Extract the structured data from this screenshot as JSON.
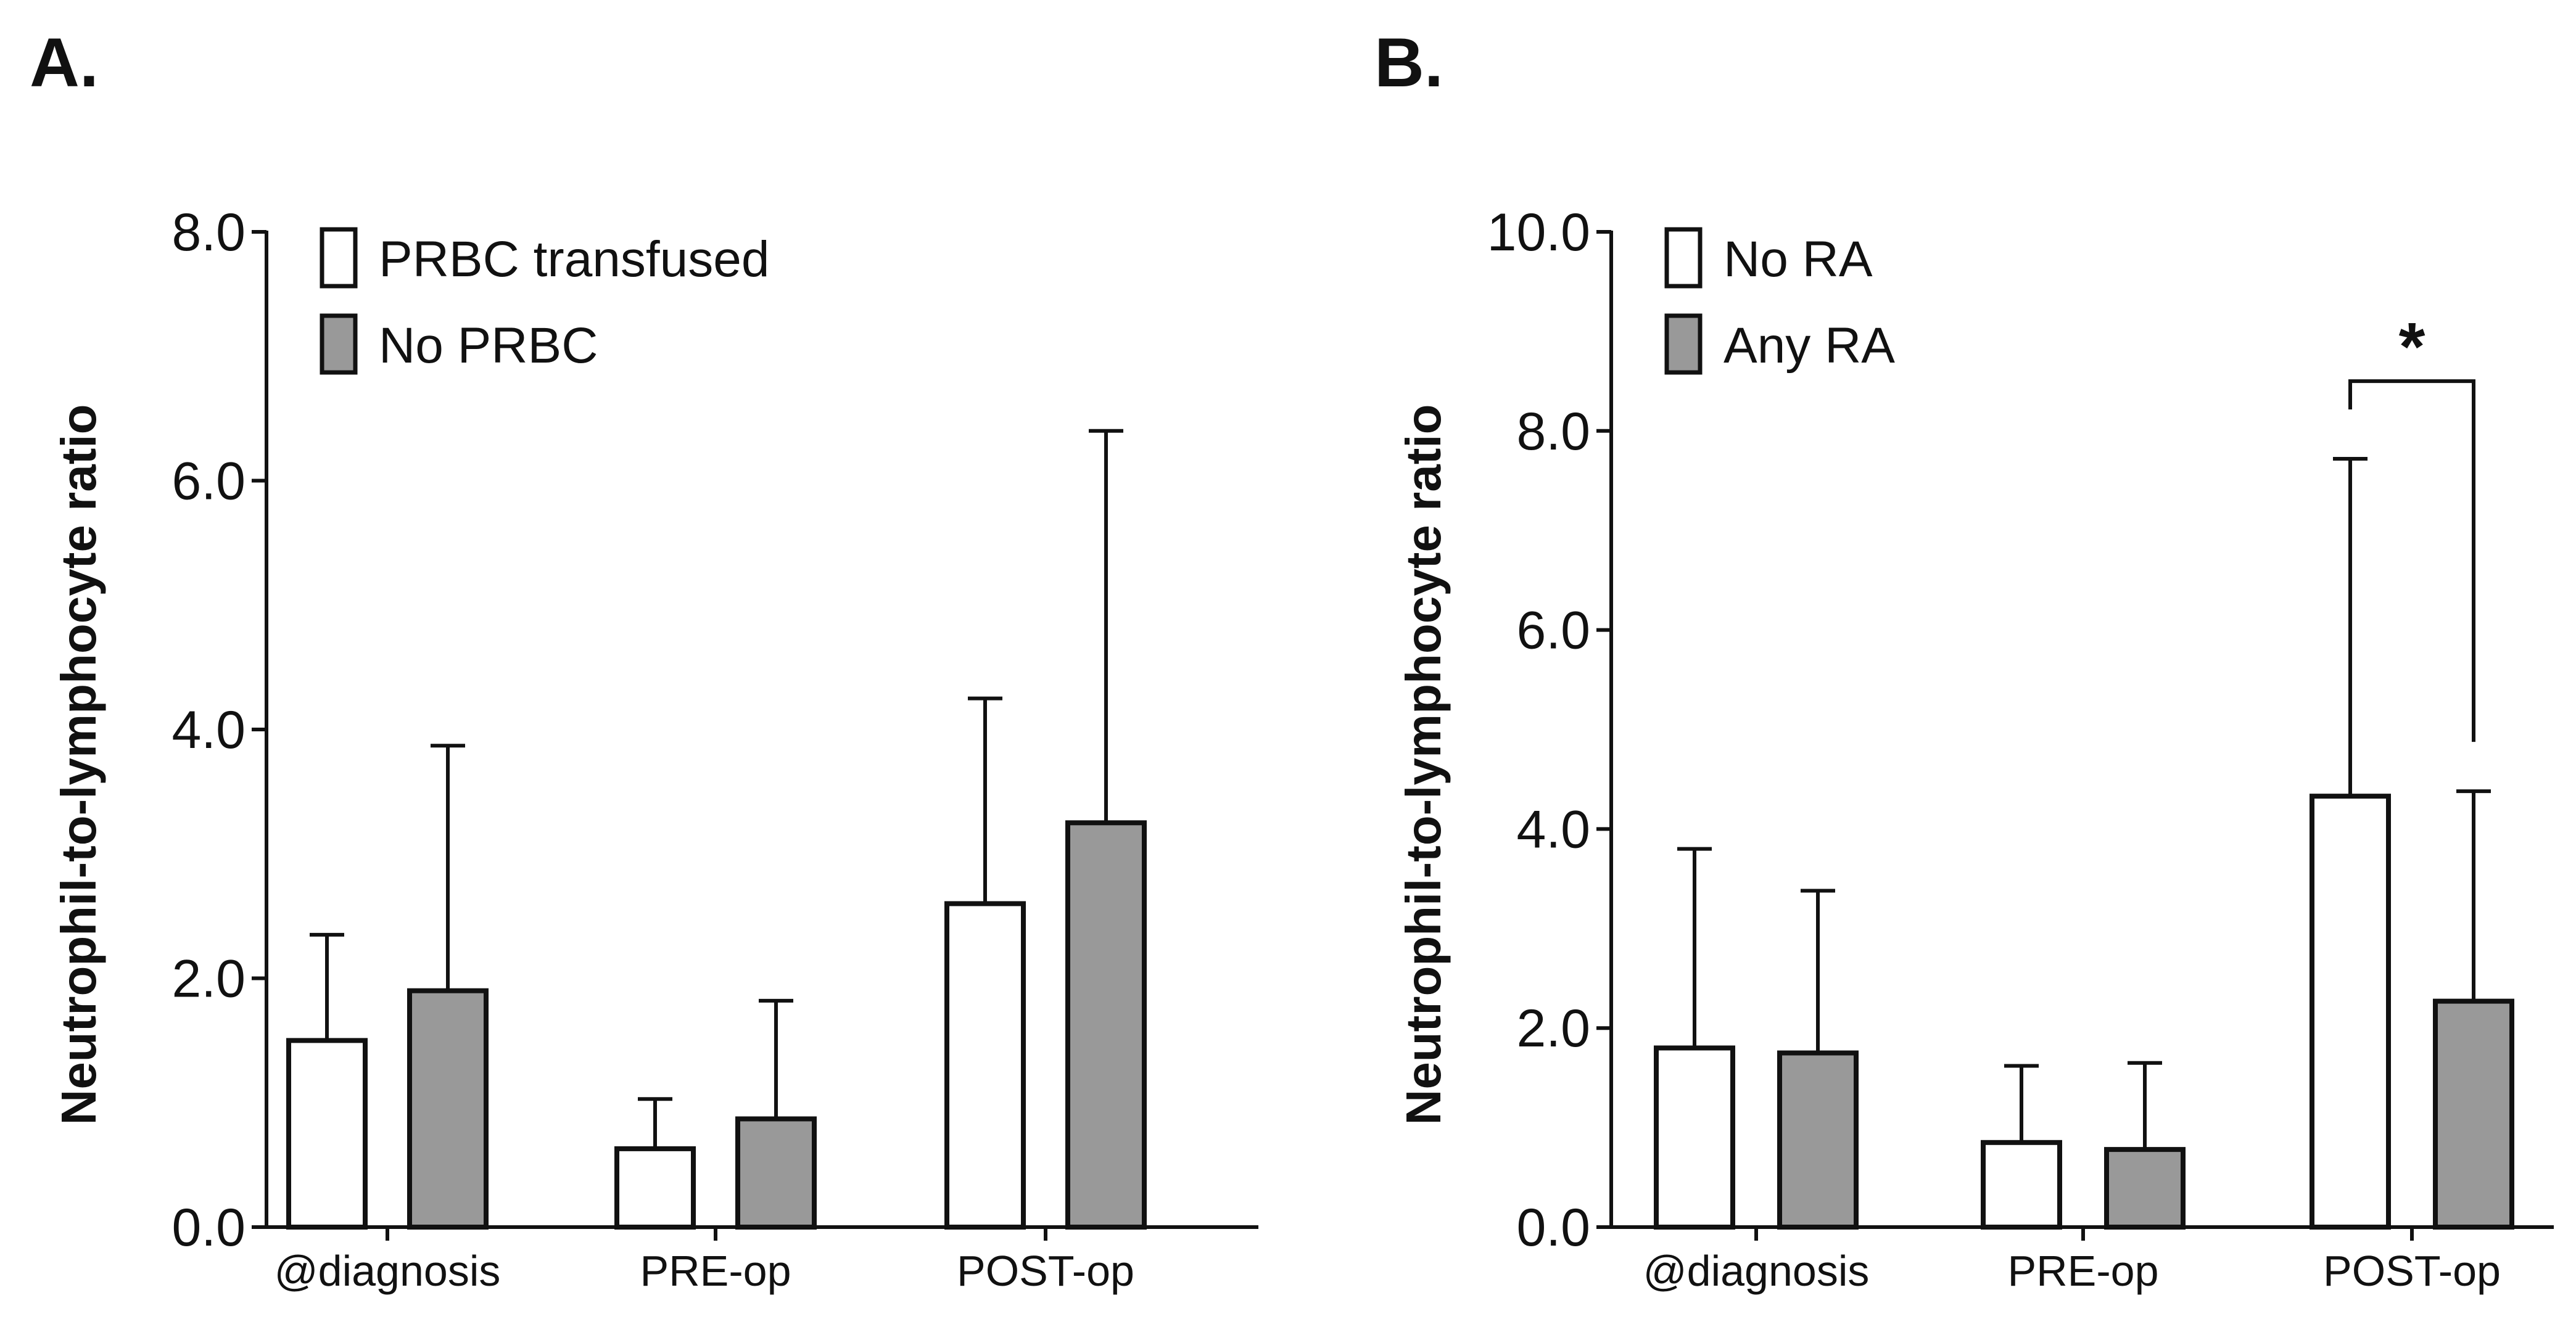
{
  "chart_data": [
    {
      "panel": "A.",
      "type": "bar",
      "categories": [
        "@diagnosis",
        "PRE-op",
        "POST-op"
      ],
      "series": [
        {
          "name": "PRBC transfused",
          "color": "#ffffff",
          "values": [
            1.5,
            0.63,
            2.6
          ],
          "error_upper": [
            2.35,
            1.03,
            4.25
          ]
        },
        {
          "name": "No PRBC",
          "color": "#999999",
          "values": [
            1.9,
            0.87,
            3.25
          ],
          "error_upper": [
            3.87,
            1.82,
            6.4
          ]
        }
      ],
      "ylabel": "Neutrophil-to-lymphocyte ratio",
      "ylim": [
        0,
        8
      ],
      "yticks": [
        "0.0",
        "2.0",
        "4.0",
        "6.0",
        "8.0"
      ],
      "legend_position": "top-left",
      "grid": false
    },
    {
      "panel": "B.",
      "type": "bar",
      "categories": [
        "@diagnosis",
        "PRE-op",
        "POST-op"
      ],
      "series": [
        {
          "name": "No RA",
          "color": "#ffffff",
          "values": [
            1.8,
            0.85,
            4.33
          ],
          "error_upper": [
            3.8,
            1.62,
            7.72
          ]
        },
        {
          "name": "Any RA",
          "color": "#999999",
          "values": [
            1.75,
            0.78,
            2.27
          ],
          "error_upper": [
            3.38,
            1.65,
            4.38
          ]
        }
      ],
      "ylabel": "Neutrophil-to-lymphocyte ratio",
      "ylim": [
        0,
        10
      ],
      "yticks": [
        "0.0",
        "2.0",
        "4.0",
        "6.0",
        "8.0",
        "10.0"
      ],
      "legend_position": "top-left",
      "grid": false,
      "annotations": [
        {
          "text": "*",
          "category": "POST-op",
          "bracket_level": 8.5
        }
      ]
    }
  ]
}
